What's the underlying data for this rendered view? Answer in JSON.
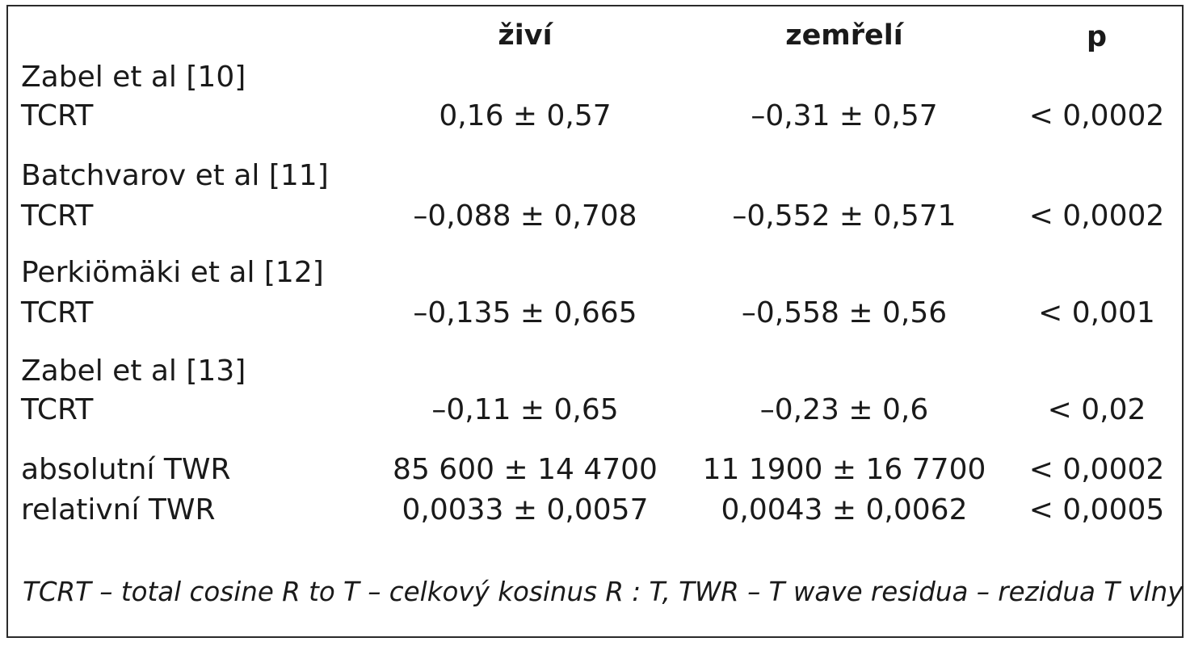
{
  "headers": {
    "alive": "živí",
    "dead": "zemřelí",
    "p": "p"
  },
  "groups": [
    {
      "study": "Zabel et al [10]",
      "rows": [
        {
          "label": "TCRT",
          "alive": "0,16 ± 0,57",
          "dead": "–0,31 ± 0,57",
          "p": "< 0,0002"
        }
      ]
    },
    {
      "study": "Batchvarov et al [11]",
      "rows": [
        {
          "label": "TCRT",
          "alive": "–0,088 ± 0,708",
          "dead": "–0,552 ± 0,571",
          "p": "< 0,0002"
        }
      ]
    },
    {
      "study": "Perkiömäki et al [12]",
      "rows": [
        {
          "label": "TCRT",
          "alive": "–0,135 ± 0,665",
          "dead": "–0,558 ± 0,56",
          "p": "< 0,001"
        }
      ]
    },
    {
      "study": "Zabel et al [13]",
      "rows": [
        {
          "label": "TCRT",
          "alive": "–0,11 ± 0,65",
          "dead": "–0,23 ± 0,6",
          "p": "< 0,02"
        },
        {
          "label": "absolutní TWR",
          "alive": "85 600 ± 14 4700",
          "dead": "11 1900 ± 16 7700",
          "p": "< 0,0002"
        },
        {
          "label": "relativní TWR",
          "alive": "0,0033 ± 0,0057",
          "dead": "0,0043 ± 0,0062",
          "p": "< 0,0005"
        }
      ]
    }
  ],
  "footnote": "TCRT – total cosine R to T – celkový kosinus R : T, TWR – T wave residua – rezidua T vlny"
}
